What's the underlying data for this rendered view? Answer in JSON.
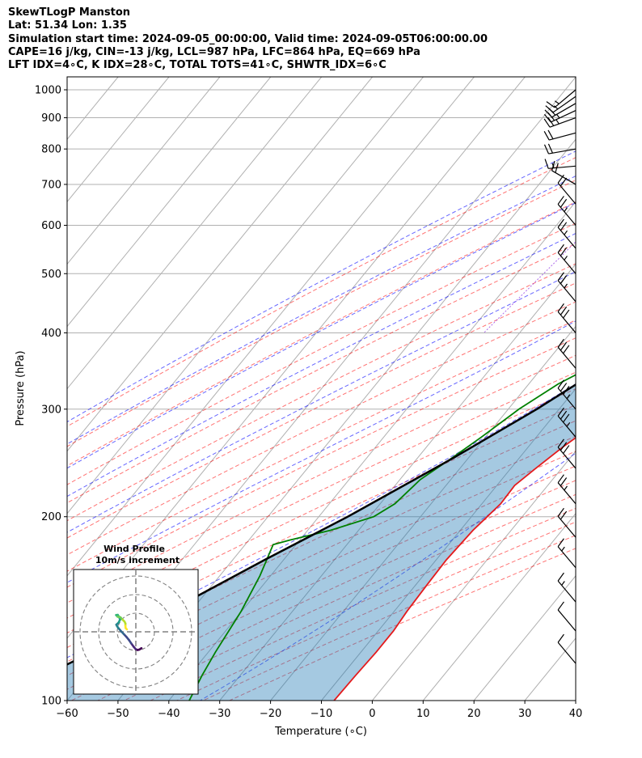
{
  "header": {
    "line1": "SkewTLogP Manston",
    "line2": "Lat: 51.34   Lon: 1.35",
    "line3": "Simulation start time: 2024-09-05_00:00:00, Valid time: 2024-09-05T06:00:00.00",
    "line4": "CAPE=16 j/kg, CIN=-13 j/kg, LCL=987 hPa, LFC=864 hPa, EQ=669 hPa",
    "line5": "LFT IDX=4∘C, K IDX=28∘C, TOTAL TOTS=41∘C, SHWTR_IDX=6∘C"
  },
  "chart_data": {
    "type": "line",
    "subtype": "skew-t log-p",
    "xlabel": "Temperature (∘C)",
    "ylabel": "Pressure (hPa)",
    "xlim": [
      -60,
      40
    ],
    "ylim": [
      1050,
      100
    ],
    "y_scale": "log",
    "grid": true,
    "x_ticks": [
      "−60",
      "−50",
      "−40",
      "−30",
      "−20",
      "−10",
      "0",
      "10",
      "20",
      "30",
      "40"
    ],
    "y_ticks": [
      "100",
      "200",
      "300",
      "400",
      "500",
      "600",
      "700",
      "800",
      "900",
      "1000"
    ],
    "series": [
      {
        "role": "temperature",
        "color": "#e41a1c",
        "points": [
          [
            18.5,
            1005
          ],
          [
            17.3,
            950
          ],
          [
            16.9,
            900
          ],
          [
            15.5,
            850
          ],
          [
            14.4,
            800
          ],
          [
            12.4,
            750
          ],
          [
            11.0,
            700
          ],
          [
            10.2,
            650
          ],
          [
            9.6,
            600
          ],
          [
            9.2,
            550
          ],
          [
            8.4,
            500
          ],
          [
            7.4,
            450
          ],
          [
            6.2,
            400
          ],
          [
            5.0,
            375
          ],
          [
            4.4,
            350
          ],
          [
            1.0,
            300
          ],
          [
            -3.2,
            260
          ],
          [
            -5.1,
            240
          ],
          [
            -6.5,
            225
          ],
          [
            -6.3,
            210
          ],
          [
            -7.5,
            190
          ],
          [
            -8.0,
            170
          ],
          [
            -7.8,
            155
          ],
          [
            -7.5,
            140
          ],
          [
            -7.0,
            130
          ],
          [
            -7.0,
            120
          ],
          [
            -7.3,
            110
          ],
          [
            -7.5,
            100
          ]
        ]
      },
      {
        "role": "dewpoint",
        "color": "#008000",
        "points": [
          [
            17.0,
            1005
          ],
          [
            15.7,
            960
          ],
          [
            13.0,
            925
          ],
          [
            11.5,
            895
          ],
          [
            11.7,
            870
          ],
          [
            11.5,
            845
          ],
          [
            11.6,
            820
          ],
          [
            11.4,
            800
          ],
          [
            10.6,
            760
          ],
          [
            10.0,
            700
          ],
          [
            10.5,
            650
          ],
          [
            9.7,
            600
          ],
          [
            8.1,
            550
          ],
          [
            6.3,
            500
          ],
          [
            3.2,
            450
          ],
          [
            0.5,
            400
          ],
          [
            -4.2,
            380
          ],
          [
            -10.8,
            350
          ],
          [
            -14.2,
            330
          ],
          [
            -17.9,
            300
          ],
          [
            -20.8,
            270
          ],
          [
            -23.2,
            250
          ],
          [
            -26.0,
            230
          ],
          [
            -27.1,
            210
          ],
          [
            -29.2,
            200
          ],
          [
            -35.5,
            190
          ],
          [
            -42.0,
            183
          ],
          [
            -44.5,
            180
          ],
          [
            -42.1,
            160
          ],
          [
            -40.1,
            140
          ],
          [
            -38.6,
            120
          ],
          [
            -37.5,
            110
          ],
          [
            -36.0,
            100
          ]
        ]
      },
      {
        "role": "parcel",
        "color": "#000000",
        "points": [
          [
            18.5,
            1005
          ],
          [
            16.9,
            987
          ],
          [
            15.4,
            950
          ],
          [
            14.5,
            900
          ],
          [
            13.6,
            850
          ],
          [
            12.6,
            800
          ],
          [
            11.5,
            750
          ],
          [
            10.5,
            700
          ],
          [
            9.2,
            650
          ],
          [
            7.3,
            600
          ],
          [
            5.6,
            550
          ],
          [
            3.3,
            500
          ],
          [
            0.4,
            450
          ],
          [
            -3.3,
            400
          ],
          [
            -8.2,
            350
          ],
          [
            -14.4,
            300
          ],
          [
            -22.9,
            250
          ],
          [
            -34.3,
            200
          ],
          [
            -43.7,
            170
          ],
          [
            -54.3,
            140
          ],
          [
            -58.6,
            130
          ],
          [
            -62.9,
            120
          ],
          [
            -68.3,
            110
          ],
          [
            -74.1,
            100
          ]
        ]
      }
    ],
    "inset": {
      "title_line1": "Wind Profile",
      "title_line2": "10m/s increment",
      "hodograph_uv": [
        [
          3.0,
          -8.8
        ],
        [
          2.0,
          -9.5
        ],
        [
          1.0,
          -9.8
        ],
        [
          0.0,
          -9.4
        ],
        [
          -1.2,
          -8.0
        ],
        [
          -2.5,
          -6.2
        ],
        [
          -3.7,
          -4.4
        ],
        [
          -5.0,
          -2.8
        ],
        [
          -6.5,
          -1.2
        ],
        [
          -8.0,
          0.4
        ],
        [
          -9.3,
          1.9
        ],
        [
          -10.0,
          2.9
        ],
        [
          -10.5,
          3.8
        ],
        [
          -9.3,
          4.9
        ],
        [
          -8.5,
          6.5
        ],
        [
          -9.0,
          8.0
        ],
        [
          -9.7,
          9.1
        ],
        [
          -10.6,
          9.0
        ],
        [
          -9.8,
          8.1
        ],
        [
          -8.3,
          7.8
        ],
        [
          -7.1,
          6.5
        ],
        [
          -6.1,
          5.5
        ],
        [
          -5.6,
          4.5
        ],
        [
          -5.6,
          3.3
        ],
        [
          -5.5,
          2.0
        ],
        [
          -4.8,
          1.3
        ]
      ],
      "rings_ms": [
        10,
        20,
        30
      ]
    },
    "wind_barbs": [
      {
        "p": 1000,
        "speed_kt": 15,
        "dir": 230
      },
      {
        "p": 975,
        "speed_kt": 15,
        "dir": 235
      },
      {
        "p": 950,
        "speed_kt": 20,
        "dir": 240
      },
      {
        "p": 925,
        "speed_kt": 25,
        "dir": 245
      },
      {
        "p": 900,
        "speed_kt": 25,
        "dir": 250
      },
      {
        "p": 850,
        "speed_kt": 20,
        "dir": 255
      },
      {
        "p": 800,
        "speed_kt": 20,
        "dir": 260
      },
      {
        "p": 750,
        "speed_kt": 15,
        "dir": 265
      },
      {
        "p": 700,
        "speed_kt": 20,
        "dir": 300
      },
      {
        "p": 650,
        "speed_kt": 20,
        "dir": 320
      },
      {
        "p": 600,
        "speed_kt": 25,
        "dir": 320
      },
      {
        "p": 550,
        "speed_kt": 25,
        "dir": 320
      },
      {
        "p": 500,
        "speed_kt": 25,
        "dir": 320
      },
      {
        "p": 450,
        "speed_kt": 25,
        "dir": 320
      },
      {
        "p": 400,
        "speed_kt": 30,
        "dir": 320
      },
      {
        "p": 350,
        "speed_kt": 30,
        "dir": 320
      },
      {
        "p": 300,
        "speed_kt": 35,
        "dir": 320
      },
      {
        "p": 270,
        "speed_kt": 35,
        "dir": 320
      },
      {
        "p": 240,
        "speed_kt": 30,
        "dir": 320
      },
      {
        "p": 210,
        "speed_kt": 25,
        "dir": 320
      },
      {
        "p": 185,
        "speed_kt": 20,
        "dir": 320
      },
      {
        "p": 165,
        "speed_kt": 15,
        "dir": 320
      },
      {
        "p": 145,
        "speed_kt": 15,
        "dir": 320
      },
      {
        "p": 130,
        "speed_kt": 10,
        "dir": 320
      },
      {
        "p": 115,
        "speed_kt": 10,
        "dir": 320
      }
    ]
  }
}
